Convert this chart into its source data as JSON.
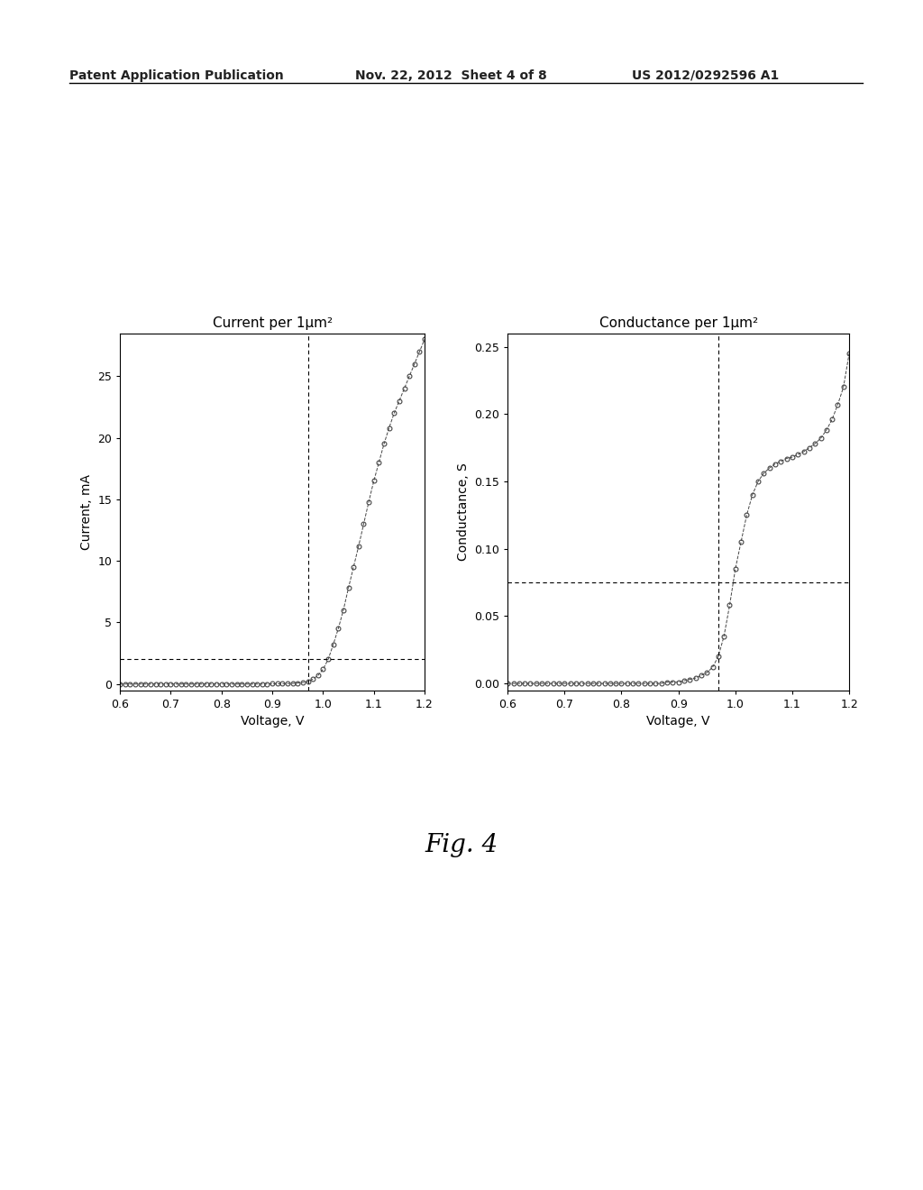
{
  "header_left": "Patent Application Publication",
  "header_center": "Nov. 22, 2012  Sheet 4 of 8",
  "header_right": "US 2012/0292596 A1",
  "fig_label": "Fig. 4",
  "plot1": {
    "title": "Current per 1μm²",
    "xlabel": "Voltage, V",
    "ylabel": "Current, mA",
    "xlim": [
      0.6,
      1.2
    ],
    "ylim": [
      -0.5,
      28.5
    ],
    "yticks": [
      0,
      5,
      10,
      15,
      20,
      25
    ],
    "xticks": [
      0.6,
      0.7,
      0.8,
      0.9,
      1.0,
      1.1,
      1.2
    ],
    "vline_x": 0.97,
    "hline_y": 2.0,
    "data_voltage": [
      0.6,
      0.61,
      0.62,
      0.63,
      0.64,
      0.65,
      0.66,
      0.67,
      0.68,
      0.69,
      0.7,
      0.71,
      0.72,
      0.73,
      0.74,
      0.75,
      0.76,
      0.77,
      0.78,
      0.79,
      0.8,
      0.81,
      0.82,
      0.83,
      0.84,
      0.85,
      0.86,
      0.87,
      0.88,
      0.89,
      0.9,
      0.91,
      0.92,
      0.93,
      0.94,
      0.95,
      0.96,
      0.97,
      0.98,
      0.99,
      1.0,
      1.01,
      1.02,
      1.03,
      1.04,
      1.05,
      1.06,
      1.07,
      1.08,
      1.09,
      1.1,
      1.11,
      1.12,
      1.13,
      1.14,
      1.15,
      1.16,
      1.17,
      1.18,
      1.19,
      1.2
    ],
    "data_current": [
      0.0,
      0.0,
      0.0,
      0.0,
      0.0,
      0.0,
      0.0,
      0.0,
      0.0,
      0.0,
      0.0,
      0.0,
      0.0,
      0.0,
      0.0,
      0.0,
      0.0,
      0.0,
      0.0,
      0.0,
      0.0,
      0.0,
      0.0,
      0.0,
      0.0,
      0.0,
      0.0,
      0.0,
      0.0,
      0.0,
      0.02,
      0.02,
      0.03,
      0.04,
      0.05,
      0.08,
      0.12,
      0.2,
      0.4,
      0.7,
      1.2,
      2.0,
      3.2,
      4.5,
      6.0,
      7.8,
      9.5,
      11.2,
      13.0,
      14.8,
      16.5,
      18.0,
      19.5,
      20.8,
      22.0,
      23.0,
      24.0,
      25.0,
      26.0,
      27.0,
      28.0
    ]
  },
  "plot2": {
    "title": "Conductance per 1μm²",
    "xlabel": "Voltage, V",
    "ylabel": "Conductance, S",
    "xlim": [
      0.6,
      1.2
    ],
    "ylim": [
      -0.005,
      0.26
    ],
    "yticks": [
      0.0,
      0.05,
      0.1,
      0.15,
      0.2,
      0.25
    ],
    "xticks": [
      0.6,
      0.7,
      0.8,
      0.9,
      1.0,
      1.1,
      1.2
    ],
    "vline_x": 0.97,
    "hline_y": 0.075,
    "data_voltage": [
      0.6,
      0.61,
      0.62,
      0.63,
      0.64,
      0.65,
      0.66,
      0.67,
      0.68,
      0.69,
      0.7,
      0.71,
      0.72,
      0.73,
      0.74,
      0.75,
      0.76,
      0.77,
      0.78,
      0.79,
      0.8,
      0.81,
      0.82,
      0.83,
      0.84,
      0.85,
      0.86,
      0.87,
      0.88,
      0.89,
      0.9,
      0.91,
      0.92,
      0.93,
      0.94,
      0.95,
      0.96,
      0.97,
      0.98,
      0.99,
      1.0,
      1.01,
      1.02,
      1.03,
      1.04,
      1.05,
      1.06,
      1.07,
      1.08,
      1.09,
      1.1,
      1.11,
      1.12,
      1.13,
      1.14,
      1.15,
      1.16,
      1.17,
      1.18,
      1.19,
      1.2
    ],
    "data_conductance": [
      0.0,
      0.0,
      0.0,
      0.0,
      0.0,
      0.0,
      0.0,
      0.0,
      0.0,
      0.0,
      0.0,
      0.0,
      0.0,
      0.0,
      0.0,
      0.0,
      0.0,
      0.0,
      0.0,
      0.0,
      0.0,
      0.0,
      0.0,
      0.0,
      0.0,
      0.0,
      0.0,
      0.0,
      0.001,
      0.001,
      0.001,
      0.002,
      0.003,
      0.004,
      0.006,
      0.008,
      0.012,
      0.02,
      0.035,
      0.058,
      0.085,
      0.105,
      0.125,
      0.14,
      0.15,
      0.156,
      0.16,
      0.163,
      0.165,
      0.167,
      0.168,
      0.17,
      0.172,
      0.175,
      0.178,
      0.182,
      0.188,
      0.196,
      0.207,
      0.22,
      0.245
    ]
  },
  "background_color": "#ffffff",
  "line_color": "#444444",
  "text_color": "#222222"
}
